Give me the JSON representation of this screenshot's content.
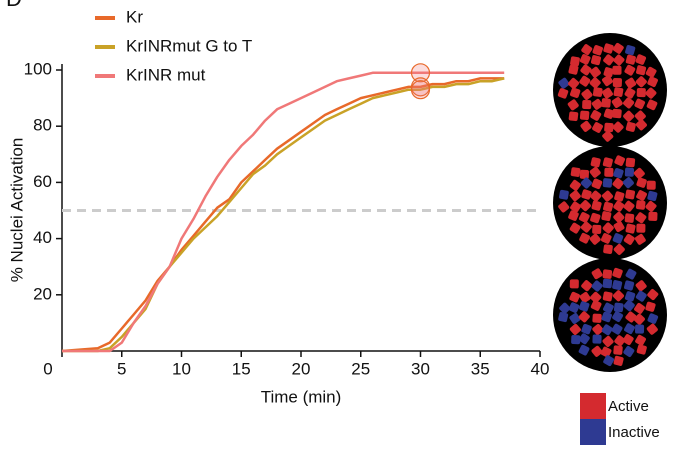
{
  "chart_data": {
    "type": "line",
    "panel_label": "D",
    "xlabel": "Time (min)",
    "ylabel": "% Nuclei Activation",
    "x": [
      0,
      3,
      4,
      5,
      6,
      7,
      8,
      9,
      10,
      11,
      12,
      13,
      14,
      15,
      16,
      17,
      18,
      19,
      20,
      21,
      22,
      23,
      24,
      25,
      26,
      27,
      28,
      29,
      30,
      31,
      32,
      33,
      34,
      35,
      36,
      37
    ],
    "series": [
      {
        "name": "Kr",
        "color": "#e8692a",
        "values": [
          0,
          1,
          3,
          8,
          13,
          18,
          25,
          30,
          36,
          41,
          46,
          51,
          54,
          60,
          64,
          68,
          72,
          75,
          78,
          81,
          84,
          86,
          88,
          90,
          91,
          92,
          93,
          94,
          94,
          95,
          95,
          96,
          96,
          97,
          97,
          97
        ]
      },
      {
        "name": "KrINRmut G to T",
        "color": "#c9a227",
        "values": [
          0,
          0,
          1,
          5,
          10,
          15,
          24,
          30,
          35,
          40,
          44,
          48,
          53,
          58,
          63,
          66,
          70,
          73,
          76,
          79,
          82,
          84,
          86,
          88,
          90,
          91,
          92,
          93,
          93,
          94,
          94,
          95,
          95,
          96,
          96,
          97
        ]
      },
      {
        "name": "KrINR mut",
        "color": "#f07878",
        "values": [
          0,
          0,
          0,
          3,
          10,
          16,
          24,
          30,
          40,
          47,
          55,
          62,
          68,
          73,
          77,
          82,
          86,
          88,
          90,
          92,
          94,
          96,
          97,
          98,
          99,
          99,
          99,
          99,
          99,
          99,
          99,
          99,
          99,
          99,
          99,
          99
        ]
      }
    ],
    "markers": [
      {
        "x": 30,
        "y": 99
      },
      {
        "x": 30,
        "y": 94
      },
      {
        "x": 30,
        "y": 93
      }
    ],
    "reference_line": 50,
    "xlim": [
      0,
      40
    ],
    "xticks": [
      0,
      5,
      10,
      15,
      20,
      25,
      30,
      35,
      40
    ],
    "ylim": [
      0,
      100
    ],
    "yticks": [
      20,
      40,
      60,
      80,
      100
    ],
    "image_legend": [
      {
        "label": "Active",
        "color": "#d42a2f"
      },
      {
        "label": "Inactive",
        "color": "#2e3a92"
      }
    ]
  }
}
